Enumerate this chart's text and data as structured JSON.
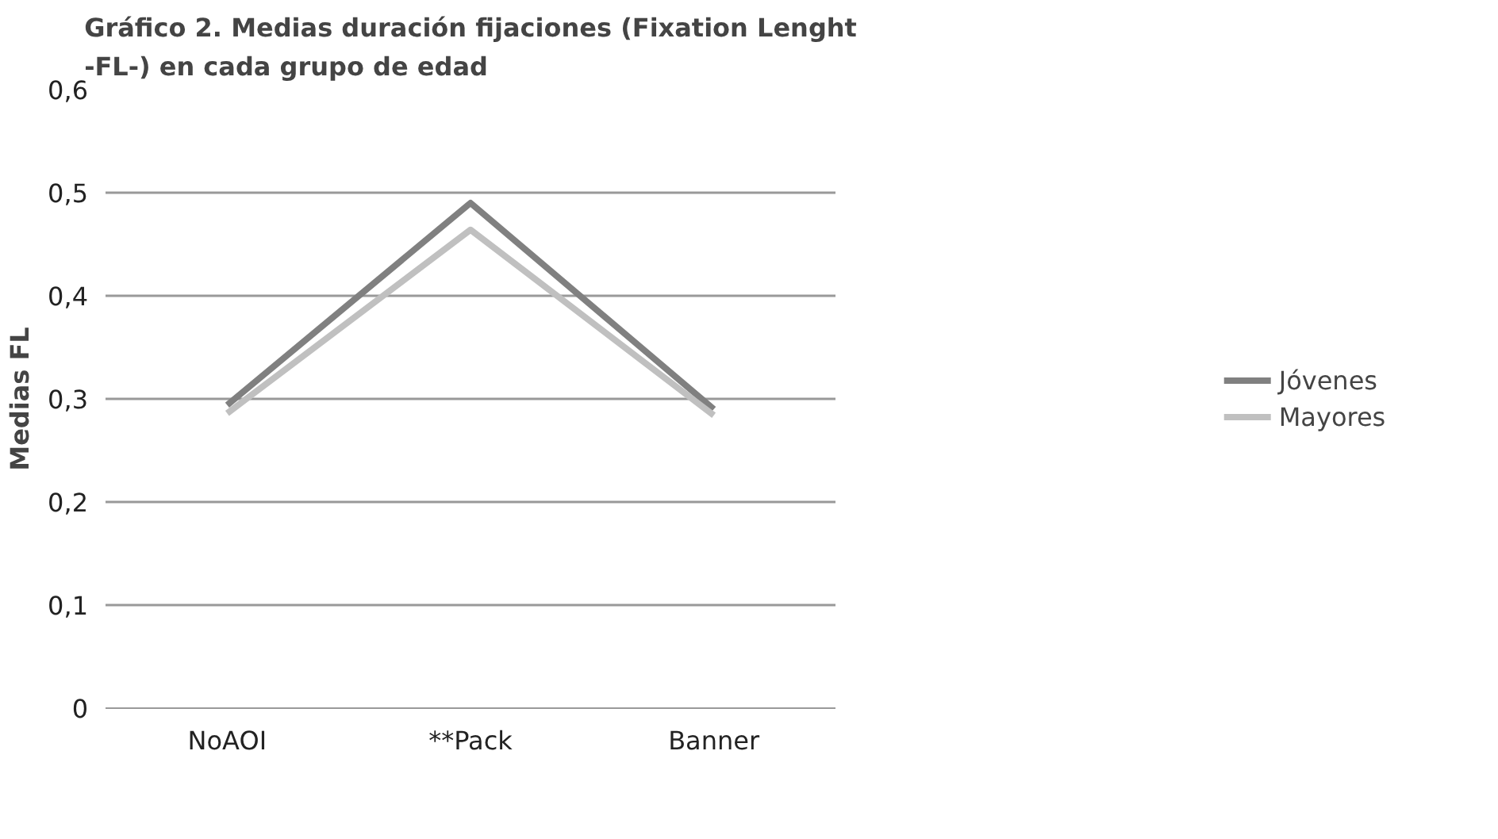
{
  "chart_data": {
    "type": "line",
    "title": "Gráfico 2. Medias duración fijaciones (Fixation Lenght -FL-) en cada grupo de edad",
    "ylabel": "Medias FL",
    "categories": [
      "NoAOI",
      "**Pack",
      "Banner"
    ],
    "series": [
      {
        "name": "Jóvenes",
        "color": "#808080",
        "values": [
          0.294,
          0.49,
          0.29
        ]
      },
      {
        "name": "Mayores",
        "color": "#c0c0c0",
        "values": [
          0.286,
          0.464,
          0.284
        ]
      }
    ],
    "ylim": [
      0,
      0.6
    ],
    "yticks": [
      {
        "value": 0,
        "label": "0"
      },
      {
        "value": 0.1,
        "label": "0,1"
      },
      {
        "value": 0.2,
        "label": "0,2"
      },
      {
        "value": 0.3,
        "label": "0,3"
      },
      {
        "value": 0.4,
        "label": "0,4"
      },
      {
        "value": 0.5,
        "label": "0,5"
      },
      {
        "value": 0.6,
        "label": "0,6"
      }
    ],
    "grid": "y",
    "legend": "right",
    "marker": "none",
    "line_style": "solid"
  }
}
